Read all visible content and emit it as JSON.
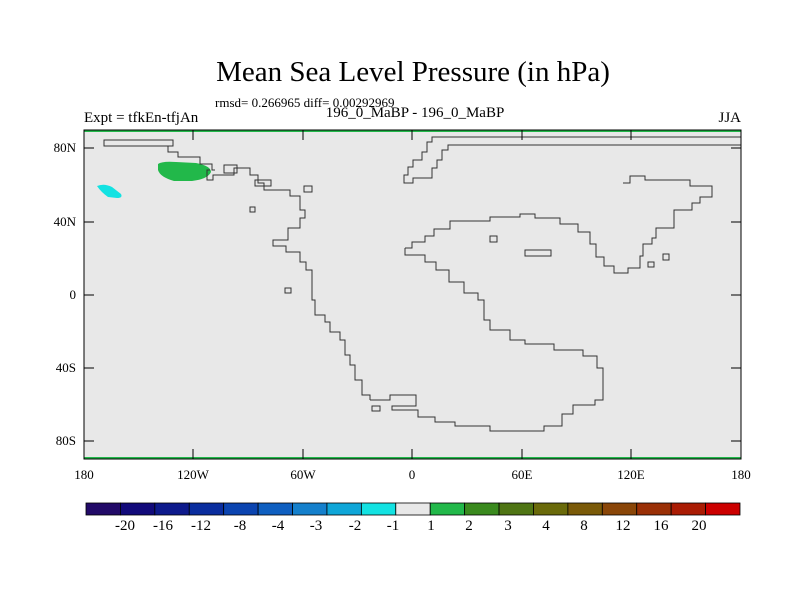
{
  "title": "Mean Sea Level Pressure (in hPa)",
  "stats": "rmsd= 0.266965 diff= 0.00292969",
  "left_label": "Expt = tfkEn-tfjAn",
  "center_label": "196_0_MaBP - 196_0_MaBP",
  "right_label": "JJA",
  "y_labels": [
    "80N",
    "40N",
    "0",
    "40S",
    "80S"
  ],
  "x_labels": [
    "180",
    "120W",
    "60W",
    "0",
    "60E",
    "120E",
    "180"
  ],
  "colorbar": {
    "colors": [
      "#220a68",
      "#120a7a",
      "#0e1a8c",
      "#0a2d9e",
      "#0b44b0",
      "#0f5fc0",
      "#1580cc",
      "#0fa6d8",
      "#13e2e2",
      "#e8e8e8",
      "#22b84a",
      "#3a8a1e",
      "#4f7514",
      "#6a6a0a",
      "#7a5a08",
      "#8a4608",
      "#9a3006",
      "#aa1c04",
      "#cc0000"
    ],
    "labels": [
      "-20",
      "-16",
      "-12",
      "-8",
      "-4",
      "-3",
      "-2",
      "-1",
      "1",
      "2",
      "3",
      "4",
      "8",
      "12",
      "16",
      "20"
    ]
  },
  "map_data": {
    "lon_range": [
      -180,
      180
    ],
    "lat_range": [
      -90,
      90
    ],
    "background_color": "#e8e8e8",
    "features": [
      {
        "name": "positive anomaly",
        "range": "1 to 2 hPa",
        "color": "#22b84a",
        "center": [
          -126,
          69
        ]
      },
      {
        "name": "negative anomaly",
        "range": "-2 to -1 hPa",
        "color": "#13e2e2",
        "center": [
          -162,
          56
        ]
      }
    ]
  }
}
